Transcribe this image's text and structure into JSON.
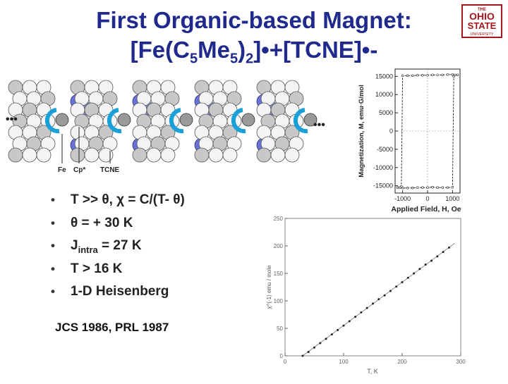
{
  "slide": {
    "title_line1": "First Organic-based Magnet:",
    "title_line2_prefix": "[Fe(C",
    "title_sub1": "5",
    "title_mid1": "Me",
    "title_sub2": "5",
    "title_mid2": ")",
    "title_sub3": "2",
    "title_suffix": "]•+[TCNE]•-",
    "logo_line1": "THE",
    "logo_line2": "OHIO",
    "logo_line3": "STATE",
    "logo_line4": "UNIVERSITY",
    "accent_color": "#1f2a8c"
  },
  "molecule_labels": {
    "fe": "Fe",
    "cp": "Cp*",
    "tcne": "TCNE",
    "ellipsis_left": "•••",
    "ellipsis_right": "•••"
  },
  "bullets": [
    {
      "pre": "T >> θ,  χ = C/(T- θ)"
    },
    {
      "pre": "θ = + 30 K"
    },
    {
      "pre": "J",
      "sub": "intra",
      "post": " = 27 K"
    },
    {
      "pre": "T > 16 K"
    },
    {
      "pre": "1-D Heisenberg"
    }
  ],
  "reference": "JCS 1986, PRL 1987",
  "chart_data": [
    {
      "type": "line",
      "xlabel": "Applied Field, H, Oe",
      "ylabel": "Magnetization, M, emu·G/mol",
      "xlim": [
        -1300,
        1300
      ],
      "ylim": [
        -17000,
        17000
      ],
      "x_ticks": [
        -1000,
        0,
        1000
      ],
      "y_ticks": [
        15000,
        10000,
        5000,
        0,
        -5000,
        -10000,
        -15000
      ],
      "series": [
        {
          "x": [
            -1200,
            -1100,
            -1000,
            -800,
            -600,
            -400,
            -200,
            0,
            200,
            400,
            600,
            800,
            1000,
            1050
          ],
          "y": [
            -15500,
            -15500,
            -15600,
            -15600,
            -15600,
            -15500,
            -15500,
            -15500,
            -15400,
            -15500,
            -15500,
            -15500,
            -15400,
            15000
          ]
        },
        {
          "x": [
            1200,
            1100,
            1000,
            800,
            600,
            400,
            200,
            0,
            -200,
            -400,
            -600,
            -800,
            -1000,
            -1050
          ],
          "y": [
            15400,
            15400,
            15500,
            15500,
            15400,
            15400,
            15400,
            15300,
            15300,
            15300,
            15200,
            15200,
            15200,
            -15200
          ]
        }
      ]
    },
    {
      "type": "scatter",
      "xlabel": "T, K",
      "ylabel": "χ^(-1) emu / mole",
      "xlim": [
        0,
        300
      ],
      "ylim": [
        0,
        250
      ],
      "x_ticks": [
        0,
        100,
        200,
        300
      ],
      "y_ticks": [
        0,
        50,
        100,
        150,
        200,
        250
      ],
      "fit_line": {
        "x": [
          30,
          290
        ],
        "y": [
          0,
          205
        ]
      },
      "series": [
        {
          "x": [
            30,
            40,
            50,
            60,
            70,
            80,
            90,
            100,
            110,
            120,
            130,
            140,
            150,
            160,
            170,
            180,
            190,
            200,
            210,
            220,
            230,
            240,
            250,
            260,
            270,
            280
          ],
          "y": [
            0,
            7,
            15,
            23,
            31,
            39,
            47,
            55,
            63,
            71,
            79,
            87,
            95,
            103,
            110,
            118,
            126,
            134,
            142,
            150,
            158,
            166,
            173,
            181,
            189,
            197
          ]
        }
      ]
    }
  ]
}
